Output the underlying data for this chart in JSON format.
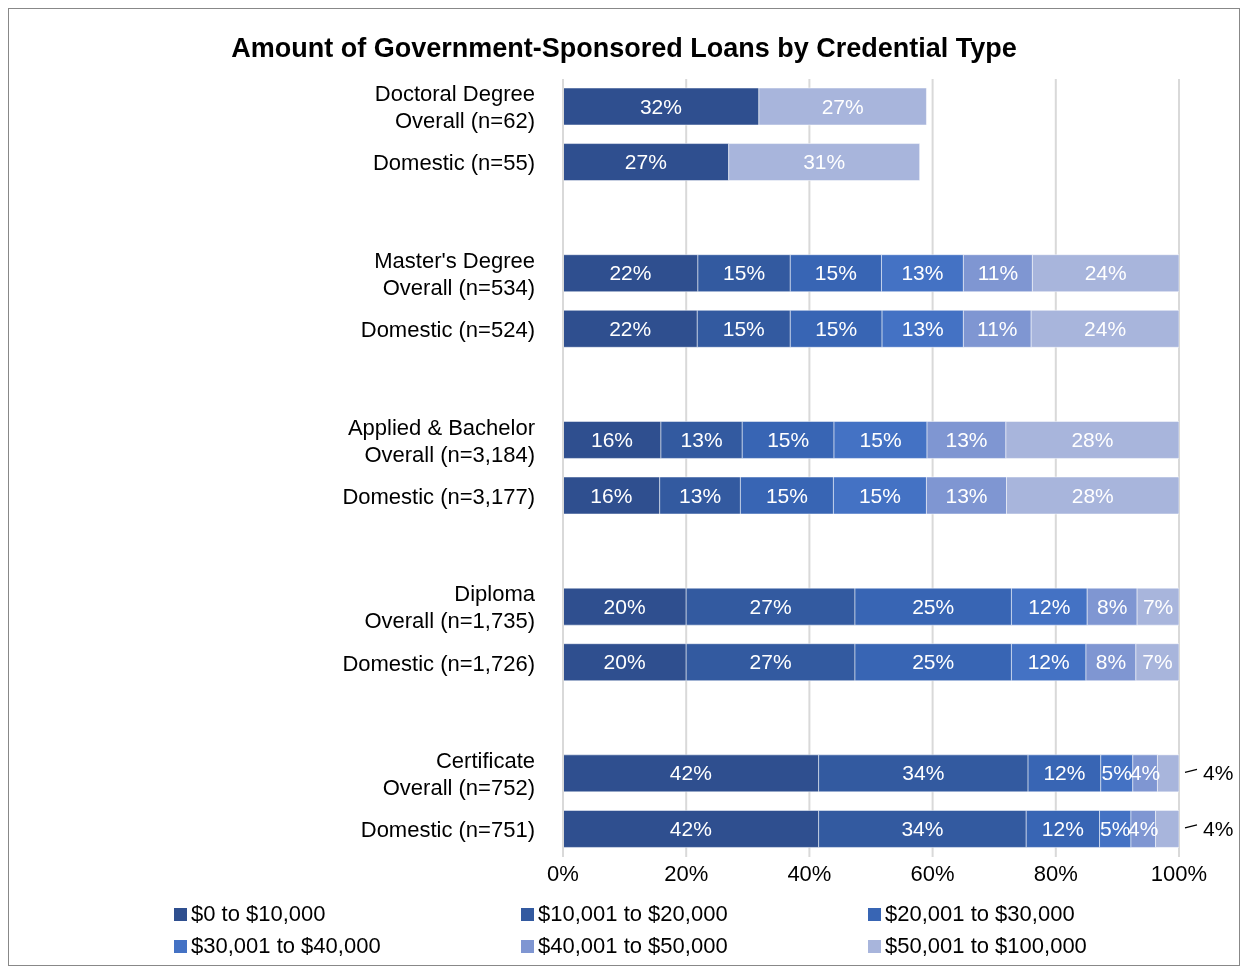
{
  "chart_data": {
    "type": "bar",
    "orientation": "horizontal",
    "stacked": true,
    "title": "Amount of Government-Sponsored Loans by Credential Type",
    "categories": [
      "Doctoral Degree\nOverall (n=62)",
      "Domestic (n=55)",
      null,
      "Master's Degree\nOverall (n=534)",
      "Domestic (n=524)",
      null,
      "Applied & Bachelor\nOverall (n=3,184)",
      "Domestic (n=3,177)",
      null,
      "Diploma\nOverall (n=1,735)",
      "Domestic (n=1,726)",
      null,
      "Certificate\nOverall (n=752)",
      "Domestic (n=751)"
    ],
    "series": [
      {
        "name": "$0 to $10,000",
        "color": "#2f4f8f",
        "values": [
          31.8,
          26.9,
          null,
          21.9,
          21.8,
          null,
          15.9,
          15.7,
          null,
          20.0,
          20.0,
          null,
          41.5,
          41.5
        ],
        "value_labels": [
          "32%",
          "27%",
          null,
          "22%",
          "22%",
          null,
          "16%",
          "16%",
          null,
          "20%",
          "20%",
          null,
          "42%",
          "42%"
        ]
      },
      {
        "name": "$10,001 to $20,000",
        "color": "#335aa0",
        "values": [
          null,
          null,
          null,
          15.0,
          15.1,
          null,
          13.2,
          13.1,
          null,
          27.4,
          27.4,
          null,
          34.0,
          33.7
        ],
        "value_labels": [
          null,
          null,
          null,
          "15%",
          "15%",
          null,
          "13%",
          "13%",
          null,
          "27%",
          "27%",
          null,
          "34%",
          "34%"
        ]
      },
      {
        "name": "$20,001 to $30,000",
        "color": "#3865b4",
        "values": [
          null,
          null,
          null,
          14.8,
          14.9,
          null,
          14.9,
          15.1,
          null,
          25.4,
          25.4,
          null,
          11.8,
          11.9
        ],
        "value_labels": [
          null,
          null,
          null,
          "15%",
          "15%",
          null,
          "15%",
          "15%",
          null,
          "25%",
          "25%",
          null,
          "12%",
          "12%"
        ]
      },
      {
        "name": "$30,001 to $40,000",
        "color": "#4472c4",
        "values": [
          null,
          null,
          null,
          13.3,
          13.2,
          null,
          15.1,
          15.1,
          null,
          12.3,
          12.1,
          null,
          5.2,
          5.1
        ],
        "value_labels": [
          null,
          null,
          null,
          "13%",
          "13%",
          null,
          "15%",
          "15%",
          null,
          "12%",
          "12%",
          null,
          "5%",
          "5%"
        ]
      },
      {
        "name": "$40,001 to $50,000",
        "color": "#7f96d2",
        "values": [
          null,
          null,
          null,
          11.2,
          11.0,
          null,
          12.8,
          13.0,
          null,
          8.1,
          8.1,
          null,
          4.0,
          4.0
        ],
        "value_labels": [
          null,
          null,
          null,
          "11%",
          "11%",
          null,
          "13%",
          "13%",
          null,
          "8%",
          "8%",
          null,
          "4%",
          "4%"
        ]
      },
      {
        "name": "$50,001 to $100,000",
        "color": "#a8b5dc",
        "values": [
          27.2,
          31.0,
          null,
          23.8,
          24.0,
          null,
          28.1,
          28.0,
          null,
          6.8,
          7.0,
          null,
          3.5,
          3.8
        ],
        "value_labels": [
          "27%",
          "31%",
          null,
          "24%",
          "24%",
          null,
          "28%",
          "28%",
          null,
          "7%",
          "7%",
          null,
          "4%",
          "4%"
        ]
      }
    ],
    "xlim": [
      0,
      100
    ],
    "xticks": [
      {
        "value": 0,
        "label": "0%"
      },
      {
        "value": 20,
        "label": "20%"
      },
      {
        "value": 40,
        "label": "40%"
      },
      {
        "value": 60,
        "label": "60%"
      },
      {
        "value": 80,
        "label": "80%"
      },
      {
        "value": 100,
        "label": "100%"
      }
    ],
    "grid": "x",
    "legend": "bottom"
  }
}
